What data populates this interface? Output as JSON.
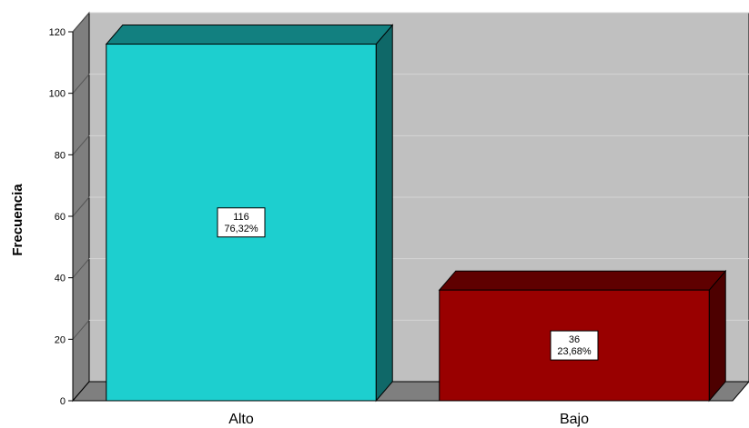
{
  "chart_data": {
    "type": "bar",
    "title": "",
    "xlabel": "",
    "ylabel": "Frecuencia",
    "categories": [
      "Alto",
      "Bajo"
    ],
    "values": [
      116,
      36
    ],
    "percent_labels": [
      "76,32%",
      "23,68%"
    ],
    "count_labels": [
      "116",
      "36"
    ],
    "colors": [
      "#1dcfcf",
      "#990000"
    ],
    "ylim": [
      0,
      120
    ],
    "yticks": [
      0,
      20,
      40,
      60,
      80,
      100,
      120
    ],
    "grid": true,
    "legend": "none",
    "style": "3d"
  }
}
